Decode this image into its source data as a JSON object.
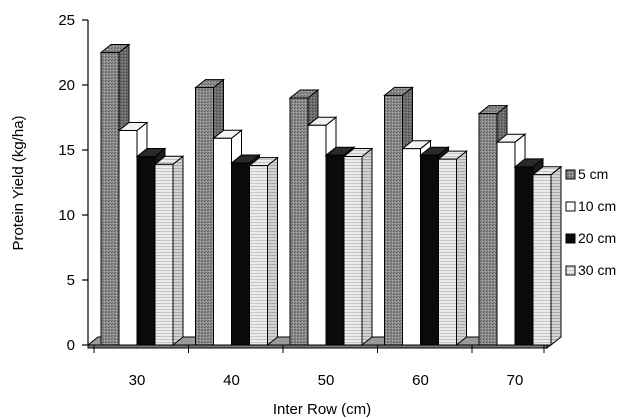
{
  "chart_data": {
    "type": "bar",
    "title": "",
    "xlabel": "Inter Row (cm)",
    "ylabel": "Protein Yield (kg/ha)",
    "ylim": [
      0,
      25
    ],
    "yticks": [
      "0",
      "5",
      "10",
      "15",
      "20",
      "25"
    ],
    "categories": [
      "30",
      "40",
      "50",
      "60",
      "70"
    ],
    "grid": false,
    "legend_position": "right",
    "series": [
      {
        "name": "5 cm",
        "values": [
          22.5,
          19.8,
          19.0,
          19.2,
          17.8
        ],
        "color": "#8a8a8a",
        "pattern": "dots-dark"
      },
      {
        "name": "10 cm",
        "values": [
          16.5,
          15.9,
          16.9,
          15.1,
          15.6
        ],
        "color": "#ffffff",
        "pattern": "none"
      },
      {
        "name": "20 cm",
        "values": [
          14.5,
          14.0,
          14.6,
          14.6,
          13.7
        ],
        "color": "#0a0a0a",
        "pattern": "none"
      },
      {
        "name": "30 cm",
        "values": [
          13.9,
          13.8,
          14.5,
          14.3,
          13.1
        ],
        "color": "#e0e0e0",
        "pattern": "lines-light"
      }
    ]
  }
}
